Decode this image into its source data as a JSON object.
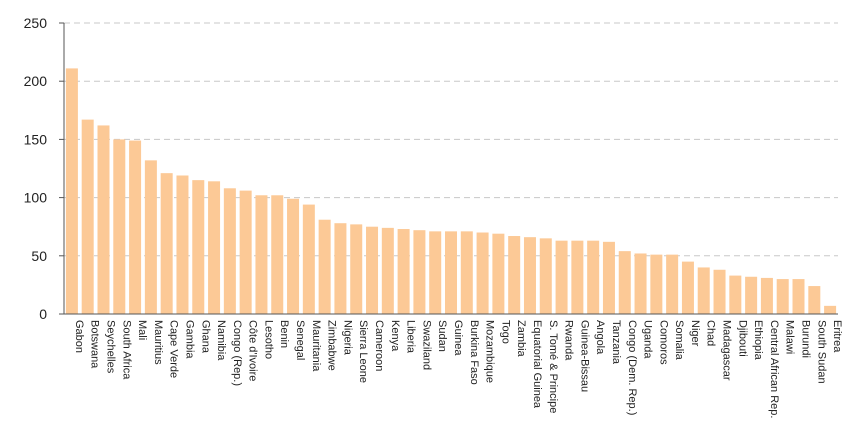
{
  "chart_data": {
    "type": "bar",
    "title": "",
    "xlabel": "",
    "ylabel": "",
    "ylim": [
      0,
      250
    ],
    "yticks": [
      0,
      50,
      100,
      150,
      200,
      250
    ],
    "grid": true,
    "bar_color": "#fcc996",
    "categories": [
      "Gabon",
      "Botswana",
      "Seychelles",
      "South Africa",
      "Mali",
      "Mauritius",
      "Cape Verde",
      "Gambia",
      "Ghana",
      "Namibia",
      "Congo (Rep.)",
      "Côte d'Ivoire",
      "Lesotho",
      "Benin",
      "Senegal",
      "Mauritania",
      "Zimbabwe",
      "Nigeria",
      "Sierra Leone",
      "Cameroon",
      "Kenya",
      "Liberia",
      "Swaziland",
      "Sudan",
      "Guinea",
      "Burkina Faso",
      "Mozambique",
      "Togo",
      "Zambia",
      "Equatorial Guinea",
      "S. Tomé & Principe",
      "Rwanda",
      "Guinea-Bissau",
      "Angola",
      "Tanzania",
      "Congo (Dem. Rep.)",
      "Uganda",
      "Comoros",
      "Somalia",
      "Niger",
      "Chad",
      "Madagascar",
      "Djibouti",
      "Ethiopia",
      "Central African Rep.",
      "Malawi",
      "Burundi",
      "South Sudan",
      "Eritrea"
    ],
    "values": [
      211,
      167,
      162,
      150,
      149,
      132,
      121,
      119,
      115,
      114,
      108,
      106,
      102,
      102,
      99,
      94,
      81,
      78,
      77,
      75,
      74,
      73,
      72,
      71,
      71,
      71,
      70,
      69,
      67,
      66,
      65,
      63,
      63,
      63,
      62,
      54,
      52,
      51,
      51,
      45,
      40,
      38,
      33,
      32,
      31,
      30,
      30,
      24,
      7
    ]
  }
}
